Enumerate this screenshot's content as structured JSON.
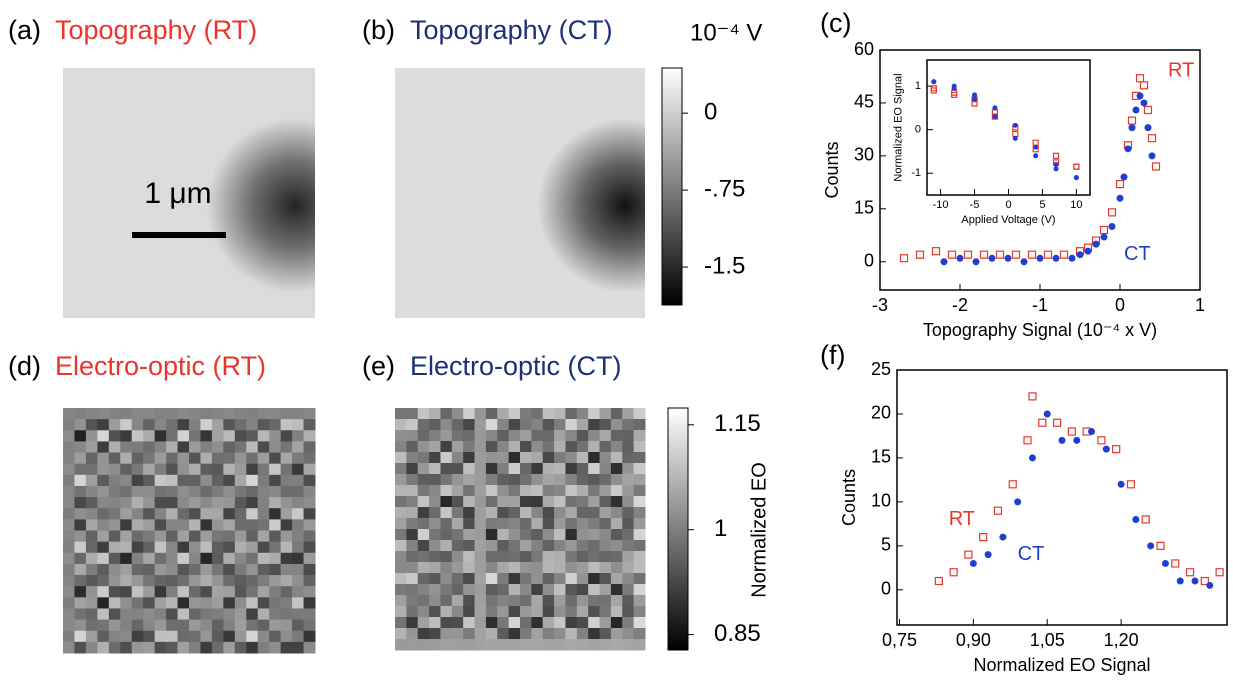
{
  "panels": [
    {
      "label": "(a)",
      "title": "Topography (RT)",
      "scale_bar": "1 μm"
    },
    {
      "label": "(b)",
      "title": "Topography  (CT)"
    },
    {
      "label": "(d)",
      "title": "Electro-optic  (RT)"
    },
    {
      "label": "(e)",
      "title": "Electro-optic  (CT)"
    }
  ],
  "colorbars": [
    {
      "label": "10⁻⁴ V",
      "lim": [
        -1.87,
        0.44
      ],
      "ticks": [
        0,
        {
          "value": -0.75,
          "label": "-.75"
        },
        -1.5
      ]
    },
    {
      "label": "Normalized EO",
      "lim": [
        0.828,
        1.174
      ],
      "ticks": [
        1.15,
        1,
        0.85
      ]
    }
  ],
  "chart_data": [
    {
      "type": "scatter",
      "panel_label": "(c)",
      "xlabel": "Topography Signal (10⁻⁴ x V)",
      "ylabel": "Counts",
      "xlim": [
        -3,
        1
      ],
      "ylim": [
        -8,
        60
      ],
      "xticks": [
        -3,
        -2,
        -1,
        0,
        1
      ],
      "yticks": [
        0,
        15,
        30,
        45,
        60
      ],
      "annotations": [
        {
          "text": "RT",
          "color": "#e8362c",
          "x": 0.6,
          "y": 54
        },
        {
          "text": "CT",
          "color": "#1f3fd1",
          "x": 0.05,
          "y": 2
        }
      ],
      "series": [
        {
          "name": "RT",
          "color": "#e8362c",
          "marker": "square-open",
          "x": [
            -2.7,
            -2.5,
            -2.3,
            -2.1,
            -1.9,
            -1.7,
            -1.5,
            -1.3,
            -1.1,
            -0.9,
            -0.7,
            -0.5,
            -0.4,
            -0.3,
            -0.2,
            -0.1,
            0,
            0.1,
            0.15,
            0.2,
            0.25,
            0.3,
            0.35,
            0.4,
            0.45
          ],
          "values": [
            1,
            2,
            3,
            2,
            2,
            2,
            2,
            2,
            2,
            2,
            2,
            3,
            4,
            6,
            9,
            14,
            22,
            33,
            40,
            47,
            52,
            50,
            43,
            35,
            27
          ]
        },
        {
          "name": "CT",
          "color": "#1f3fd1",
          "marker": "circle",
          "x": [
            -2.2,
            -2,
            -1.8,
            -1.6,
            -1.4,
            -1.2,
            -1,
            -0.8,
            -0.6,
            -0.5,
            -0.4,
            -0.3,
            -0.2,
            -0.1,
            0,
            0.05,
            0.1,
            0.15,
            0.2,
            0.25,
            0.3,
            0.35,
            0.4
          ],
          "values": [
            0,
            1,
            0,
            1,
            1,
            0,
            1,
            1,
            1,
            2,
            3,
            5,
            7,
            10,
            18,
            24,
            32,
            38,
            43,
            47,
            45,
            38,
            30
          ]
        }
      ]
    },
    {
      "type": "scatter",
      "xlabel": "Applied Voltage (V)",
      "ylabel": "Normalized EO Signal",
      "xlim": [
        -12,
        12
      ],
      "ylim": [
        -1.5,
        1.6
      ],
      "xticks": [
        -10,
        -5,
        0,
        5,
        10
      ],
      "yticks": [
        -1,
        0,
        1
      ],
      "series": [
        {
          "name": "RT",
          "color": "#e8362c",
          "marker": "square-open",
          "x": [
            -11,
            -8,
            -5,
            -2,
            1,
            4,
            7,
            10,
            10,
            7,
            4,
            1,
            -2,
            -5,
            -8,
            -11
          ],
          "values": [
            0.9,
            0.8,
            0.6,
            0.3,
            -0.1,
            -0.45,
            -0.75,
            -0.85,
            -0.85,
            -0.6,
            -0.3,
            0.05,
            0.4,
            0.7,
            0.85,
            0.95
          ]
        },
        {
          "name": "CT",
          "color": "#1f3fd1",
          "marker": "circle",
          "x": [
            -11,
            -8,
            -5,
            -2,
            1,
            4,
            7,
            10,
            10,
            7,
            4,
            1,
            -2,
            -5,
            -8,
            -11
          ],
          "values": [
            1.1,
            1,
            0.8,
            0.5,
            0.1,
            -0.4,
            -0.8,
            -1.1,
            -1.1,
            -0.9,
            -0.6,
            -0.2,
            0.3,
            0.7,
            0.95,
            1.1
          ]
        }
      ]
    },
    {
      "type": "scatter",
      "panel_label": "(f)",
      "xlabel": "Normalized EO Signal",
      "ylabel": "Counts",
      "xlim": [
        0.745,
        1.415
      ],
      "ylim": [
        -4,
        25
      ],
      "xticks": [
        {
          "value": 0.75,
          "label": "0,75"
        },
        {
          "value": 0.9,
          "label": "0,90"
        },
        {
          "value": 1.05,
          "label": "1,05"
        },
        {
          "value": 1.2,
          "label": "1,20"
        }
      ],
      "yticks": [
        0,
        5,
        10,
        15,
        20,
        25
      ],
      "annotations": [
        {
          "text": "RT",
          "color": "#e8362c",
          "x": 0.85,
          "y": 8
        },
        {
          "text": "CT",
          "color": "#1f3fd1",
          "x": 0.99,
          "y": 4
        }
      ],
      "series": [
        {
          "name": "RT",
          "color": "#e8362c",
          "marker": "square-open",
          "x": [
            0.83,
            0.86,
            0.89,
            0.92,
            0.95,
            0.98,
            1.01,
            1.02,
            1.04,
            1.07,
            1.1,
            1.13,
            1.16,
            1.19,
            1.22,
            1.25,
            1.28,
            1.31,
            1.34,
            1.37,
            1.4
          ],
          "values": [
            1,
            2,
            4,
            6,
            9,
            12,
            17,
            22,
            19,
            19,
            18,
            18,
            17,
            16,
            12,
            8,
            5,
            3,
            2,
            1,
            2
          ]
        },
        {
          "name": "CT",
          "color": "#1f3fd1",
          "marker": "circle",
          "x": [
            0.9,
            0.93,
            0.96,
            0.99,
            1.02,
            1.05,
            1.08,
            1.11,
            1.14,
            1.17,
            1.2,
            1.23,
            1.26,
            1.29,
            1.32,
            1.35,
            1.38
          ],
          "values": [
            3,
            4,
            6,
            10,
            15,
            20,
            17,
            17,
            18,
            16,
            12,
            8,
            5,
            3,
            1,
            1,
            0.5
          ]
        }
      ]
    }
  ]
}
